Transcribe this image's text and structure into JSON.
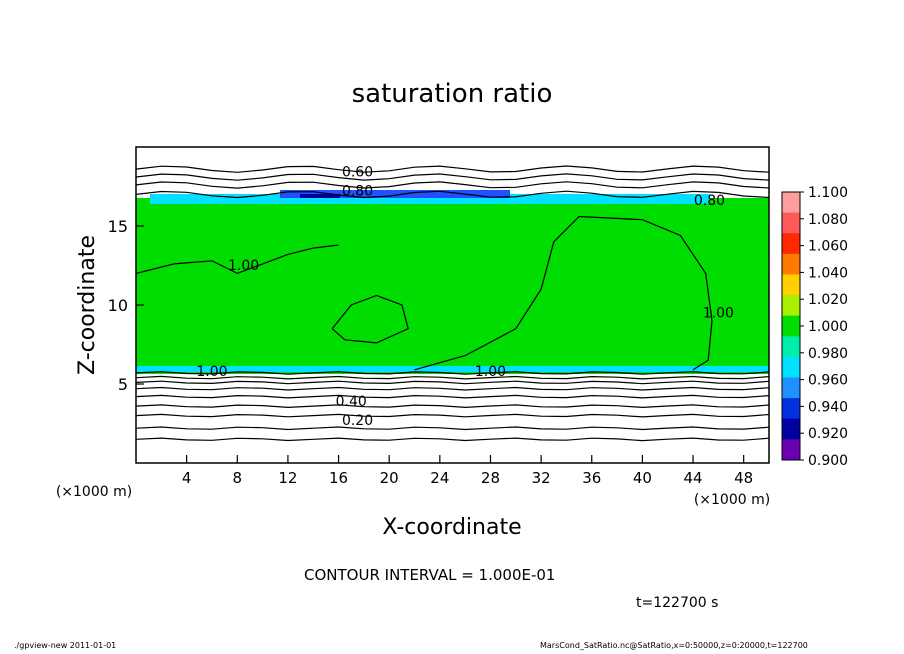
{
  "chart_data": {
    "type": "contour",
    "title": "saturation ratio",
    "xlabel": "X-coordinate",
    "ylabel": "Z-coordinate",
    "x_unit": "(×1000 m)",
    "z_unit": "(×1000 m)",
    "xlim": [
      0,
      50
    ],
    "ylim": [
      0,
      20
    ],
    "x_ticks": [
      "4",
      "8",
      "12",
      "16",
      "20",
      "24",
      "28",
      "32",
      "36",
      "40",
      "44",
      "48"
    ],
    "y_ticks": [
      "5",
      "10",
      "15"
    ],
    "contour_labels": [
      "0.60",
      "0.80",
      "0.80",
      "1.00",
      "1.00",
      "1.00",
      "1.00",
      "0.40",
      "0.20"
    ],
    "colorbar": {
      "levels": [
        "1.100",
        "1.080",
        "1.060",
        "1.040",
        "1.020",
        "1.000",
        "0.980",
        "0.960",
        "0.940",
        "0.920",
        "0.900"
      ],
      "colors": [
        "#ff9e9e",
        "#ff5a5a",
        "#ff2a00",
        "#ff7a00",
        "#ffd000",
        "#aaee00",
        "#00dd00",
        "#00eeaa",
        "#00e0ff",
        "#2090ff",
        "#0030e0",
        "#0000a0",
        "#6a00b0"
      ]
    },
    "field_colors": {
      "main": "#00dd00",
      "edge_cyan": "#00e0ff",
      "edge_blue": "#2050ff",
      "dark_blue": "#0000a0"
    }
  },
  "contour_interval": "CONTOUR INTERVAL = 1.000E-01",
  "time_label": "t=122700 s",
  "footer_left": "./gpview-new   2011-01-01",
  "footer_right": "MarsCond_SatRatio.nc@SatRatio,x=0:50000,z=0:20000,t=122700"
}
